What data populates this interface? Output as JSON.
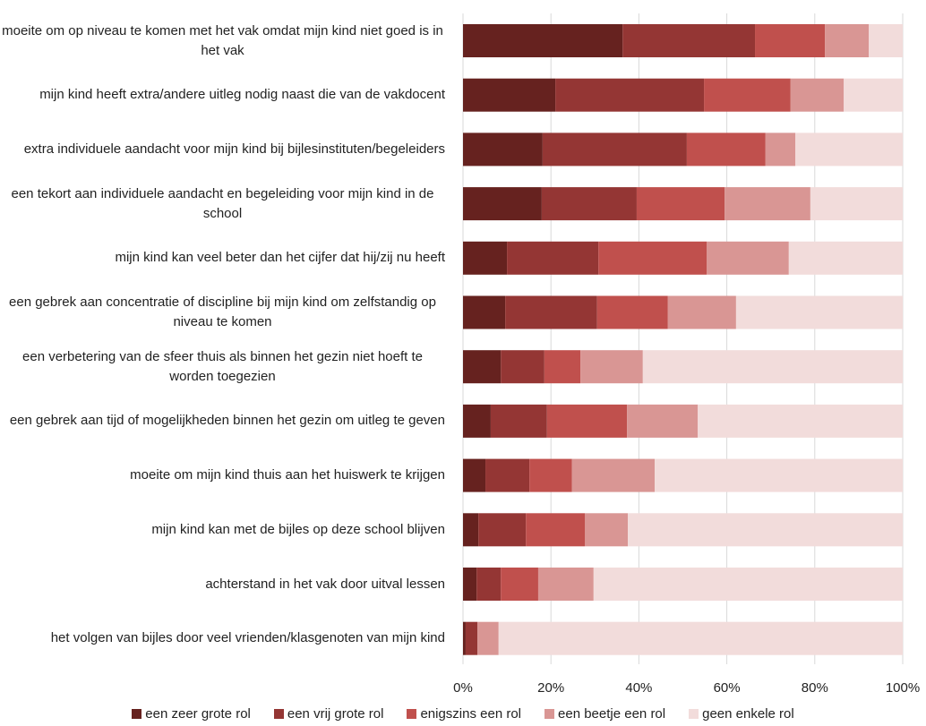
{
  "chart_data": {
    "type": "stacked_barh",
    "categories": [
      "moeite om op niveau te komen met het vak omdat mijn kind niet goed is in het vak",
      "mijn kind heeft extra/andere uitleg nodig naast die van de vakdocent",
      "extra individuele aandacht voor mijn kind bij bijlesinstituten/begeleiders",
      "een tekort aan individuele aandacht en begeleiding voor mijn kind in de school",
      "mijn kind kan veel beter dan het cijfer dat hij/zij nu heeft",
      "een gebrek aan concentratie of discipline bij mijn kind om zelfstandig op niveau te komen",
      "een verbetering van de sfeer thuis als binnen het gezin niet hoeft te worden toegezien",
      "een gebrek aan tijd of mogelijkheden binnen het gezin om uitleg te geven",
      "moeite om mijn kind thuis aan het huiswerk te krijgen",
      "mijn kind kan met de bijles op deze school blijven",
      "achterstand in het vak door uitval lessen",
      "het volgen van bijles door veel vrienden/klasgenoten van mijn kind"
    ],
    "series": [
      {
        "name": "een zeer grote rol",
        "color": "#66221f",
        "values": [
          36.3,
          21.0,
          18.1,
          17.9,
          10.0,
          9.6,
          8.6,
          6.3,
          5.1,
          3.5,
          3.1,
          0.6
        ]
      },
      {
        "name": "een vrij grote rol",
        "color": "#943634",
        "values": [
          30.1,
          33.8,
          32.8,
          21.6,
          20.8,
          20.9,
          9.9,
          12.8,
          10.0,
          10.8,
          5.5,
          2.7
        ]
      },
      {
        "name": "enigszins een rol",
        "color": "#c0504d",
        "values": [
          15.9,
          19.7,
          17.9,
          20.0,
          24.6,
          16.1,
          8.2,
          18.2,
          9.7,
          13.4,
          8.5,
          0
        ]
      },
      {
        "name": "een beetje een rol",
        "color": "#d99694",
        "values": [
          10.0,
          12.1,
          6.8,
          19.5,
          18.7,
          15.5,
          14.2,
          16.1,
          18.8,
          9.8,
          12.6,
          4.8
        ]
      },
      {
        "name": "geen enkele rol",
        "color": "#f2dcdb",
        "values": [
          7.7,
          13.4,
          24.4,
          21.0,
          25.9,
          37.9,
          59.1,
          46.6,
          56.4,
          62.5,
          70.3,
          91.9
        ]
      }
    ],
    "xlim": [
      0,
      100
    ],
    "xticks": [
      {
        "value": 0,
        "label": "0%"
      },
      {
        "value": 20,
        "label": "20%"
      },
      {
        "value": 40,
        "label": "40%"
      },
      {
        "value": 60,
        "label": "60%"
      },
      {
        "value": 80,
        "label": "80%"
      },
      {
        "value": 100,
        "label": "100%"
      }
    ],
    "grid": true
  }
}
